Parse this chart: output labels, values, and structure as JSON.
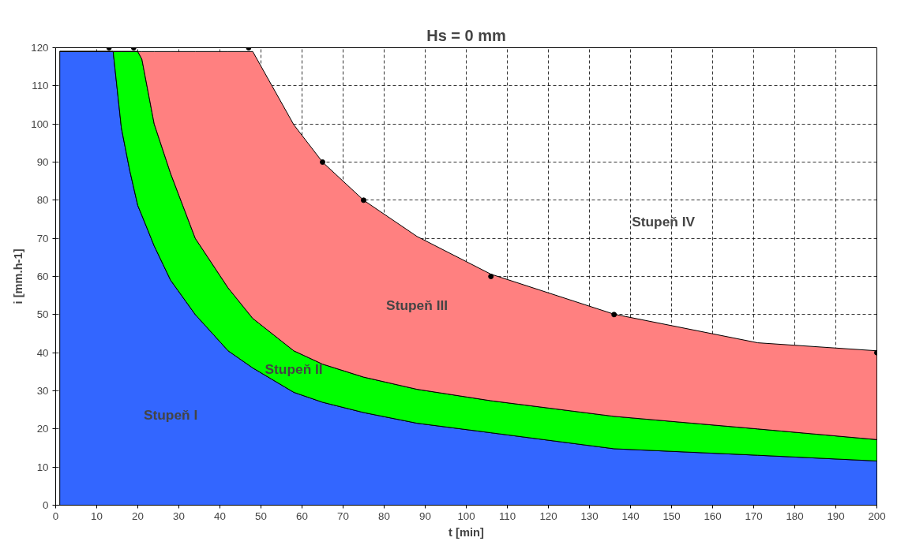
{
  "chart_data": {
    "type": "area",
    "stacked": true,
    "title": "Hs = 0 mm",
    "xlabel": "t [min]",
    "ylabel": "i [mm.h-1]",
    "xlim": [
      0,
      200
    ],
    "ylim": [
      0,
      120
    ],
    "xticks": [
      0,
      10,
      20,
      30,
      40,
      50,
      60,
      70,
      80,
      90,
      100,
      110,
      120,
      130,
      140,
      150,
      160,
      170,
      180,
      190,
      200
    ],
    "yticks": [
      0,
      10,
      20,
      30,
      40,
      50,
      60,
      70,
      80,
      90,
      100,
      110,
      120
    ],
    "grid": true,
    "line_style": "solid",
    "x": [
      1,
      14,
      16,
      18,
      20,
      21,
      24,
      28,
      34,
      42,
      48,
      58,
      65,
      75,
      88,
      106,
      136,
      171,
      200
    ],
    "series": [
      {
        "name": "Stupeň I",
        "color": "#3366ff",
        "values": [
          119,
          119,
          99,
          88,
          78.6,
          76,
          68,
          59,
          50,
          40.5,
          36,
          29.6,
          27,
          24.3,
          21.5,
          19,
          14.8,
          13.1,
          11.6
        ]
      },
      {
        "name": "Stupeň II",
        "color": "#00ff00",
        "values": [
          0,
          0,
          20,
          31,
          40.4,
          41,
          32,
          28,
          20,
          16.5,
          13,
          10.9,
          10,
          9.3,
          8.9,
          8.4,
          8.5,
          6.9,
          5.6
        ]
      },
      {
        "name": "Stupeň III",
        "color": "#ff8080",
        "values": [
          0,
          0,
          0,
          0,
          0,
          2,
          19,
          32,
          49,
          62,
          70,
          59.3,
          53,
          46.4,
          40.1,
          33.2,
          26.8,
          22.6,
          23.3
        ]
      },
      {
        "type": "scatter",
        "color": "#000000",
        "marker": "circle",
        "x": [
          13,
          19,
          47,
          65,
          75,
          106,
          136,
          200
        ],
        "values": [
          120,
          120,
          120,
          90,
          80,
          60,
          50,
          40
        ]
      }
    ],
    "annotations": [
      "Stupeň IV"
    ]
  }
}
